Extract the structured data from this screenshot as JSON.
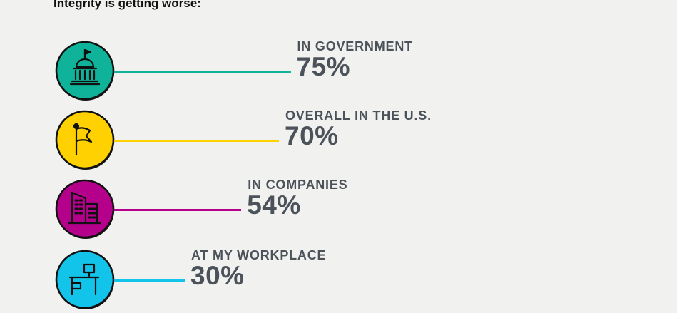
{
  "title": "Integrity is getting worse:",
  "chart_data": {
    "type": "bar",
    "title": "Integrity is getting worse:",
    "categories": [
      "IN GOVERNMENT",
      "OVERALL IN THE U.S.",
      "IN COMPANIES",
      "AT MY WORKPLACE"
    ],
    "values": [
      75,
      70,
      54,
      30
    ],
    "value_labels": [
      "75%",
      "70%",
      "54%",
      "30%"
    ],
    "unit": "%",
    "xlim": [
      0,
      100
    ],
    "icons": [
      "capitol-building-icon",
      "flag-icon",
      "office-buildings-icon",
      "office-desk-icon"
    ],
    "colors": [
      "#0fb39a",
      "#ffd100",
      "#b5008c",
      "#12c4ea"
    ]
  }
}
